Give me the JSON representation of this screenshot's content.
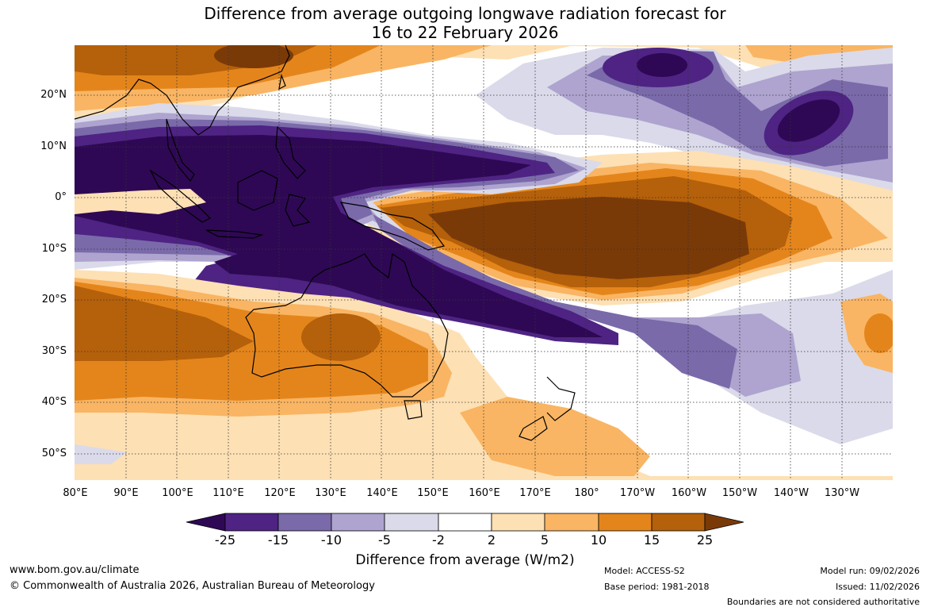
{
  "title": {
    "line1": "Difference from average outgoing longwave radiation forecast for",
    "line2": "16 to 22 February 2026"
  },
  "map": {
    "lat_labels": [
      "20°N",
      "10°N",
      "0°",
      "10°S",
      "20°S",
      "30°S",
      "40°S",
      "50°S"
    ],
    "lon_labels": [
      "80°E",
      "90°E",
      "100°E",
      "110°E",
      "120°E",
      "130°E",
      "140°E",
      "150°E",
      "160°E",
      "170°E",
      "180°",
      "170°W",
      "160°W",
      "150°W",
      "140°W",
      "130°W"
    ],
    "colors": {
      "neg_ext": "#2e0854",
      "neg_25": "#4e2383",
      "neg_15": "#7a6aaa",
      "neg_10": "#aea4cf",
      "neg_5": "#dadaea",
      "neutral": "#ffffff",
      "pos_2": "#fde0b4",
      "pos_5": "#f9b563",
      "pos_10": "#e4851b",
      "pos_15": "#b5600a",
      "pos_ext": "#7a3a08"
    }
  },
  "colorbar": {
    "ticks": [
      "-25",
      "-15",
      "-10",
      "-5",
      "-2",
      "2",
      "5",
      "10",
      "15",
      "25"
    ],
    "label": "Difference from average (W/m2)"
  },
  "footer": {
    "website": "www.bom.gov.au/climate",
    "copyright": "© Commonwealth of Australia 2026, Australian Bureau of Meteorology",
    "model": "Model: ACCESS-S2",
    "base_period": "Base period: 1981-2018",
    "model_run": "Model run: 09/02/2026",
    "issued": "Issued: 11/02/2026",
    "disclaimer": "Boundaries are not considered authoritative"
  }
}
